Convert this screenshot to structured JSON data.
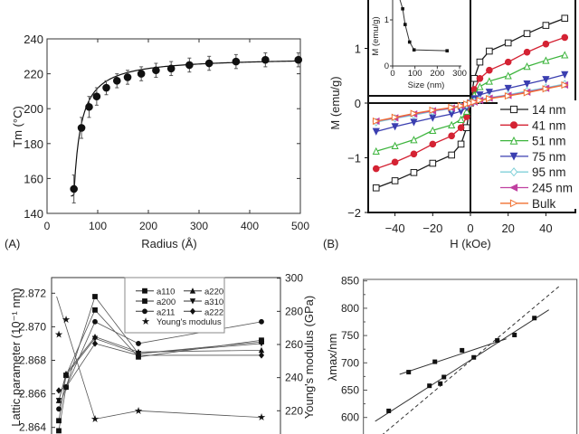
{
  "chart_data": [
    {
      "panel": "(A)",
      "type": "scatter",
      "xlabel": "Radius (Å)",
      "ylabel": "Tm (°C)",
      "xlim": [
        0,
        500
      ],
      "ylim": [
        140,
        240
      ],
      "xticks": [
        "0",
        "100",
        "200",
        "300",
        "400",
        "500"
      ],
      "yticks": [
        "140",
        "160",
        "180",
        "200",
        "220",
        "240"
      ],
      "error_bars": true,
      "fit_line": true,
      "x": [
        53,
        68,
        83,
        98,
        117,
        138,
        159,
        186,
        215,
        245,
        281,
        320,
        373,
        431,
        496
      ],
      "y": [
        154,
        189,
        201,
        207,
        212,
        216,
        218,
        220,
        222,
        223,
        225,
        226,
        227,
        228,
        228
      ],
      "error": [
        8,
        6,
        6,
        5,
        4,
        4,
        4,
        4,
        4,
        4,
        4,
        4,
        4,
        4,
        4
      ]
    },
    {
      "panel": "(B)",
      "type": "line",
      "xlabel": "H (kOe)",
      "ylabel": "M (emu/g)",
      "xlim": [
        -54,
        55
      ],
      "ylim": [
        -2,
        2
      ],
      "xticks": [
        "−40",
        "−20",
        "0",
        "20",
        "40"
      ],
      "yticks": [
        "−2",
        "−1",
        "0",
        "1"
      ],
      "legend": "right",
      "x": [
        -50,
        -40,
        -30,
        -20,
        -10,
        -5,
        -2,
        0,
        2,
        5,
        10,
        20,
        30,
        40,
        50
      ],
      "series": [
        {
          "name": "14 nm",
          "color": "#1a1a1a",
          "marker": "open-square",
          "values": [
            -1.55,
            -1.42,
            -1.27,
            -1.1,
            -0.95,
            -0.75,
            -0.45,
            0,
            0.45,
            0.75,
            0.95,
            1.1,
            1.27,
            1.42,
            1.55
          ]
        },
        {
          "name": "41 nm",
          "color": "#d42233",
          "marker": "filled-circle",
          "values": [
            -1.2,
            -1.08,
            -0.93,
            -0.75,
            -0.6,
            -0.45,
            -0.25,
            0,
            0.25,
            0.45,
            0.6,
            0.75,
            0.93,
            1.08,
            1.2
          ]
        },
        {
          "name": "51 nm",
          "color": "#3cb43c",
          "marker": "open-triangle-up",
          "values": [
            -0.88,
            -0.78,
            -0.67,
            -0.5,
            -0.4,
            -0.3,
            -0.15,
            0,
            0.15,
            0.3,
            0.4,
            0.5,
            0.67,
            0.78,
            0.88
          ]
        },
        {
          "name": "75 nm",
          "color": "#3b3fb0",
          "marker": "filled-triangle-down",
          "values": [
            -0.52,
            -0.43,
            -0.35,
            -0.27,
            -0.2,
            -0.15,
            -0.08,
            0,
            0.08,
            0.15,
            0.2,
            0.27,
            0.35,
            0.43,
            0.52
          ]
        },
        {
          "name": "95 nm",
          "color": "#80d0d8",
          "marker": "open-diamond",
          "values": [
            -0.35,
            -0.28,
            -0.22,
            -0.15,
            -0.1,
            -0.06,
            -0.03,
            0,
            0.03,
            0.06,
            0.1,
            0.15,
            0.22,
            0.28,
            0.35
          ]
        },
        {
          "name": "245 nm",
          "color": "#c040a0",
          "marker": "filled-triangle-left",
          "values": [
            -0.33,
            -0.27,
            -0.2,
            -0.14,
            -0.09,
            -0.05,
            -0.02,
            0,
            0.02,
            0.05,
            0.09,
            0.14,
            0.2,
            0.27,
            0.33
          ]
        },
        {
          "name": "Bulk",
          "color": "#f07030",
          "marker": "open-triangle-right",
          "values": [
            -0.33,
            -0.26,
            -0.19,
            -0.13,
            -0.08,
            -0.05,
            -0.02,
            0,
            0.02,
            0.05,
            0.08,
            0.13,
            0.19,
            0.26,
            0.33
          ]
        }
      ],
      "inset": {
        "type": "line",
        "xlabel": "Size (nm)",
        "ylabel": "M (emu/g)",
        "xlim": [
          0,
          300
        ],
        "ylim": [
          0,
          1.4
        ],
        "xticks": [
          "0",
          "100",
          "200",
          "300"
        ],
        "yticks": [
          "0",
          "1"
        ],
        "x": [
          27,
          45,
          56,
          76,
          96,
          244
        ],
        "y": [
          1.6,
          1.24,
          0.9,
          0.52,
          0.35,
          0.33
        ]
      }
    },
    {
      "type": "line",
      "ylabel": "Lattic parameter (10⁻¹ nm)",
      "y2label": "Young's modulus (GPa)",
      "ylim": [
        2.8635,
        2.873
      ],
      "y2lim": [
        210,
        300
      ],
      "yticks": [
        "2.864",
        "2.866",
        "2.868",
        "2.870",
        "2.872"
      ],
      "y2ticks": [
        "220",
        "240",
        "260",
        "280",
        "300"
      ],
      "legend": "top-center",
      "x": [
        1,
        2,
        6,
        12,
        29
      ],
      "series": [
        {
          "name": "a110",
          "marker": "square",
          "values": [
            2.8638,
            2.8664,
            2.8718,
            2.8684,
            2.8691
          ]
        },
        {
          "name": "a220",
          "marker": "triangle-up",
          "values": [
            2.8656,
            2.8672,
            2.8694,
            2.8685,
            2.8686
          ]
        },
        {
          "name": "a200",
          "marker": "square",
          "values": [
            2.8644,
            2.8671,
            2.871,
            2.8682,
            2.8692
          ]
        },
        {
          "name": "a310",
          "marker": "triangle-down",
          "values": [
            2.8656,
            2.8671,
            2.8693,
            2.8684,
            2.869
          ]
        },
        {
          "name": "a211",
          "marker": "circle",
          "values": [
            2.8651,
            2.8664,
            2.8703,
            2.869,
            2.8703
          ]
        },
        {
          "name": "a222",
          "marker": "diamond",
          "values": [
            2.8662,
            2.8664,
            2.869,
            2.8683,
            2.8683
          ]
        },
        {
          "name": "Young's modulus",
          "marker": "star",
          "axis": "right",
          "values": [
            266,
            275,
            215,
            220,
            216
          ]
        }
      ]
    },
    {
      "type": "scatter",
      "ylabel": "λmax/nm",
      "ylim": [
        550,
        850
      ],
      "yticks": [
        "600",
        "650",
        "700",
        "750",
        "800",
        "850"
      ],
      "x": [
        2.8,
        5.0,
        7.3,
        7.9,
        8.5,
        8.9,
        10.9,
        12.2,
        14.8,
        16.7,
        18.9
      ],
      "y": [
        612,
        683,
        658,
        702,
        662,
        674,
        723,
        710,
        741,
        751,
        782
      ],
      "fit_lines": [
        {
          "style": "solid",
          "x": [
            4.0,
            15.8
          ],
          "y": [
            679,
            744
          ]
        },
        {
          "style": "solid",
          "x": [
            1.3,
            20.5
          ],
          "y": [
            593,
            797
          ]
        },
        {
          "style": "dashed",
          "x": [
            2.0,
            21.7
          ],
          "y": [
            567,
            841
          ]
        }
      ]
    }
  ]
}
